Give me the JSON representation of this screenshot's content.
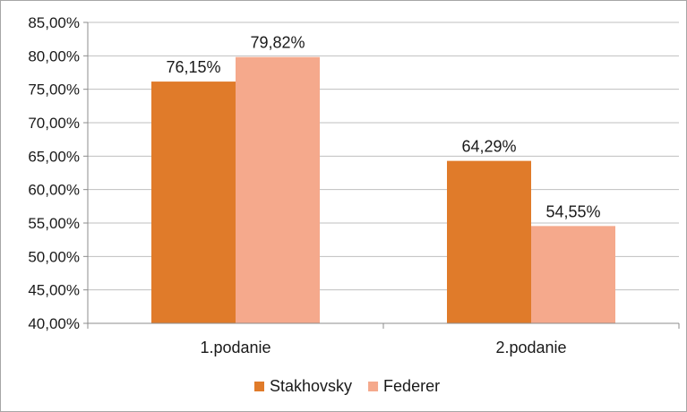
{
  "chart_data": {
    "type": "bar",
    "categories": [
      "1.podanie",
      "2.podanie"
    ],
    "series": [
      {
        "name": "Stakhovsky",
        "values": [
          76.15,
          64.29
        ],
        "labels": [
          "76,15%",
          "64,29%"
        ],
        "color": "#e07b2a"
      },
      {
        "name": "Federer",
        "values": [
          79.82,
          54.55
        ],
        "labels": [
          "79,82%",
          "54,55%"
        ],
        "color": "#f5a98c"
      }
    ],
    "ylim": [
      40,
      85
    ],
    "yticks": [
      40,
      45,
      50,
      55,
      60,
      65,
      70,
      75,
      80,
      85
    ],
    "ytick_labels": [
      "40,00%",
      "45,00%",
      "50,00%",
      "55,00%",
      "60,00%",
      "65,00%",
      "70,00%",
      "75,00%",
      "80,00%",
      "85,00%"
    ],
    "grid": true,
    "legend_position": "bottom-center",
    "title": "",
    "xlabel": "",
    "ylabel": ""
  }
}
